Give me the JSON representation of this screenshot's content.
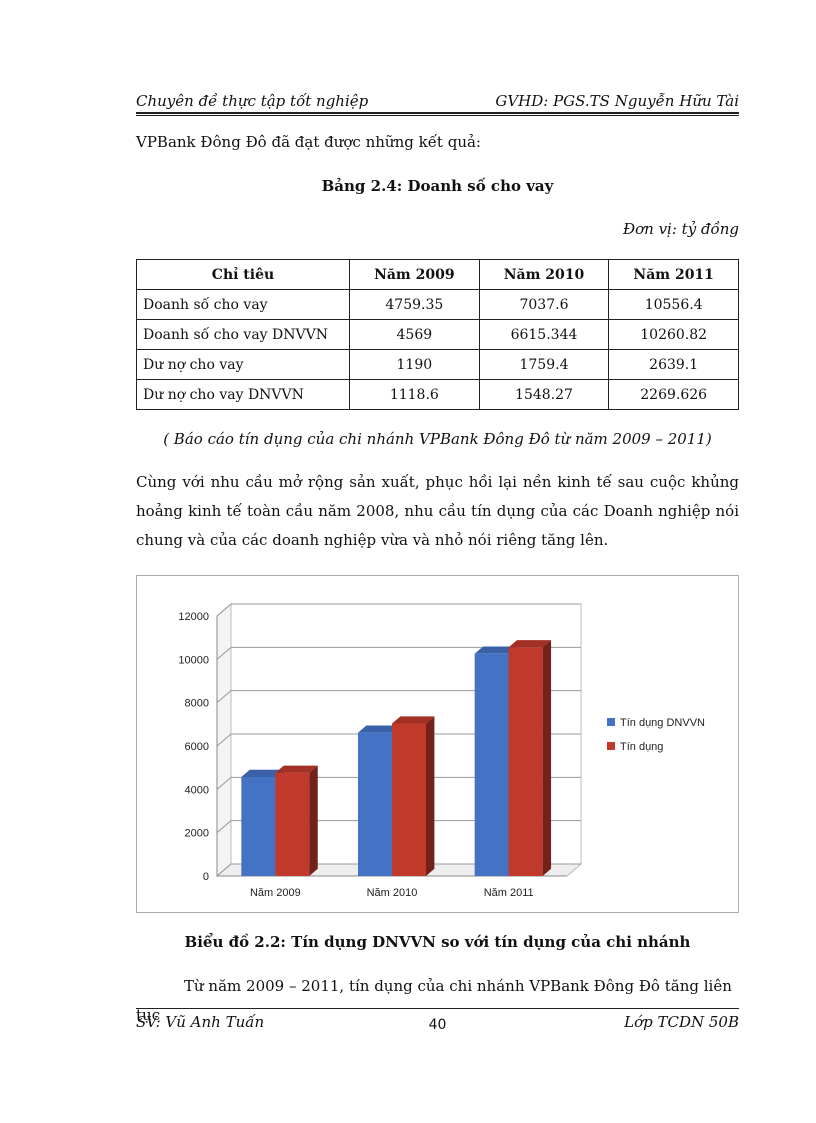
{
  "header": {
    "left": "Chuyên đề thực tập tốt nghiệp",
    "right": "GVHD: PGS.TS Nguyễn Hữu Tài"
  },
  "intro": "VPBank  Đông Đô đã đạt được những  kết quả:",
  "table_title": "Bảng 2.4: Doanh số cho vay",
  "unit": "Đơn vị: tỷ đồng",
  "table": {
    "headers": [
      "Chỉ tiêu",
      "Năm 2009",
      "Năm 2010",
      "Năm 2011"
    ],
    "rows": [
      [
        "Doanh số cho vay",
        "4759.35",
        "7037.6",
        "10556.4"
      ],
      [
        "Doanh số cho vay  DNVVN",
        "4569",
        "6615.344",
        "10260.82"
      ],
      [
        "Dư nợ cho vay",
        "1190",
        "1759.4",
        "2639.1"
      ],
      [
        "Dư nợ cho vay  DNVVN",
        "1118.6",
        "1548.27",
        "2269.626"
      ]
    ]
  },
  "source": "( Báo cáo tín dụng của chi nhánh VPBank  Đông Đô từ năm 2009 – 2011)",
  "paragraph": "Cùng với nhu cầu mở rộng sản xuất, phục hồi lại nền kinh tế sau cuộc khủng hoảng kinh tế toàn cầu năm 2008, nhu cầu tín dụng  của các Doanh nghiệp nói chung và của các doanh nghiệp vừa và nhỏ nói riêng tăng lên.",
  "chart_data": {
    "type": "bar",
    "categories": [
      "Năm 2009",
      "Năm 2010",
      "Năm 2011"
    ],
    "series": [
      {
        "name": "Tín dụng DNVVN",
        "values": [
          4569,
          6615.344,
          10260.82
        ],
        "color": "#4472C4"
      },
      {
        "name": "Tín dụng",
        "values": [
          4759.35,
          7037.6,
          10556.4
        ],
        "color": "#C0392B"
      }
    ],
    "yticks": [
      "0",
      "2000",
      "4000",
      "6000",
      "8000",
      "10000",
      "12000"
    ],
    "ylim": [
      0,
      12000
    ],
    "grid": true,
    "legend": "right",
    "style": "3d"
  },
  "chart_caption": "Biểu đồ 2.2: Tín dụng DNVVN  so với tín dụng của chi nhánh",
  "last_line": "Từ năm 2009 – 2011, tín dụng của chi nhánh  VPBank  Đông Đô tăng liên tục",
  "footer": {
    "left": "SV: Vũ Anh Tuấn",
    "center": "40",
    "right": "Lớp TCDN 50B"
  }
}
